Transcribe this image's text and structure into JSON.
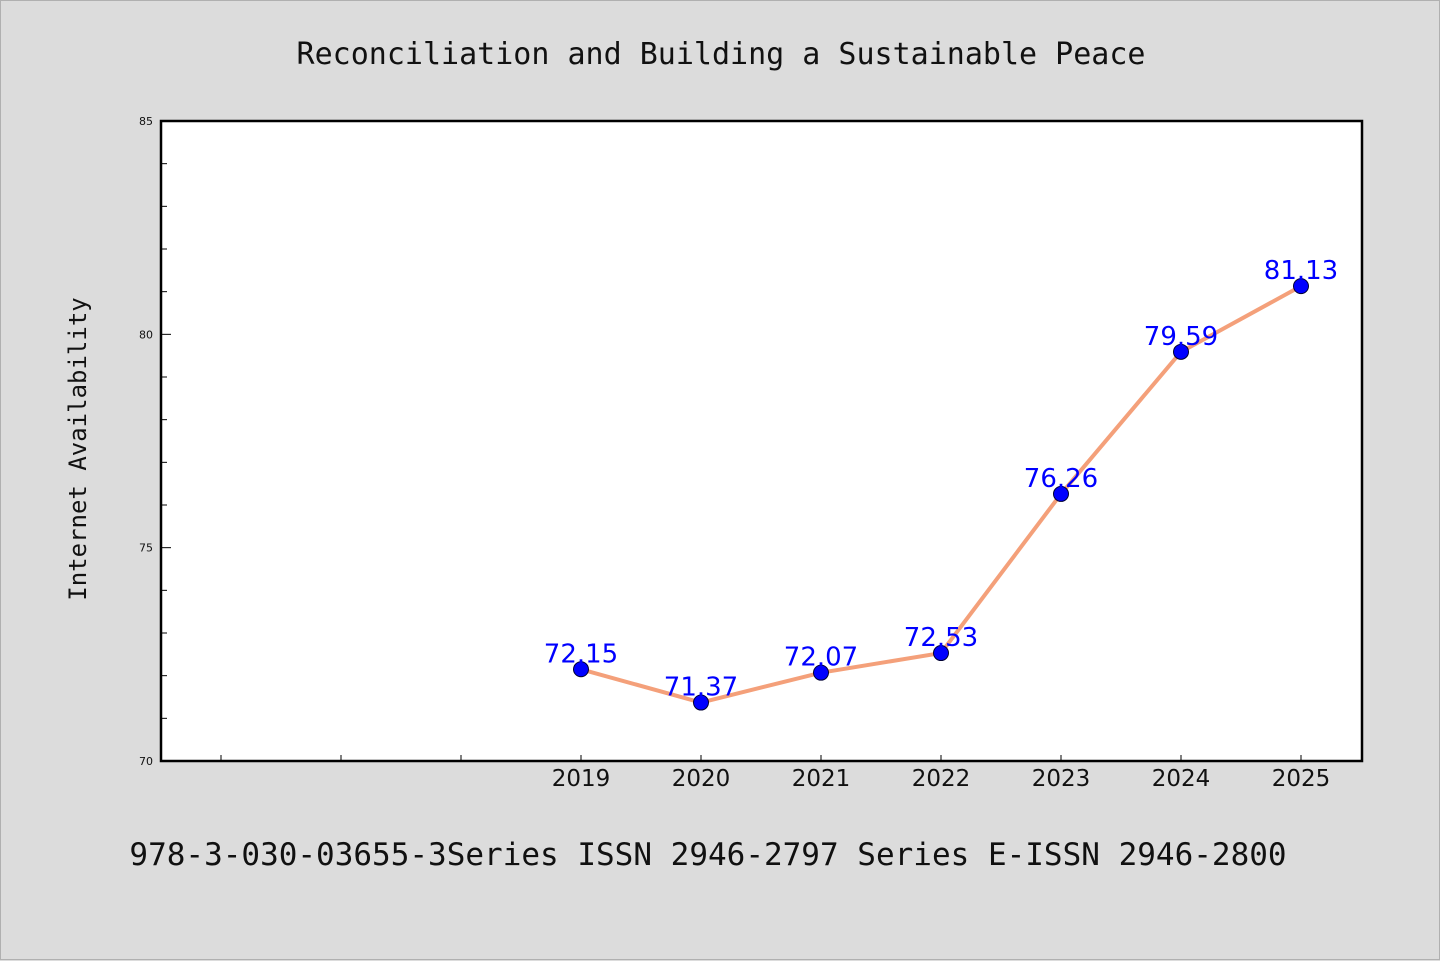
{
  "chart_data": {
    "type": "line",
    "title": "Reconciliation and Building a Sustainable Peace",
    "xlabel": "",
    "ylabel": "Internet Availability",
    "x": [
      "2019",
      "2020",
      "2021",
      "2022",
      "2023",
      "2024",
      "2025"
    ],
    "series": [
      {
        "values": [
          72.15,
          71.37,
          72.07,
          72.53,
          76.26,
          79.59,
          81.13
        ],
        "labels": [
          "72.15",
          "71.37",
          "72.07",
          "72.53",
          "76.26",
          "79.59",
          "81.13"
        ],
        "line_color": "#f4a07a",
        "marker_color": "#0000ff"
      }
    ],
    "ylim": [
      70,
      85
    ],
    "yticks": [
      "70",
      "75",
      "80",
      "85"
    ],
    "grid": false,
    "legend": "none",
    "data_label_color": "#0000ff"
  },
  "footer": "978-3-030-03655-3Series ISSN 2946-2797 Series E-ISSN 2946-2800"
}
